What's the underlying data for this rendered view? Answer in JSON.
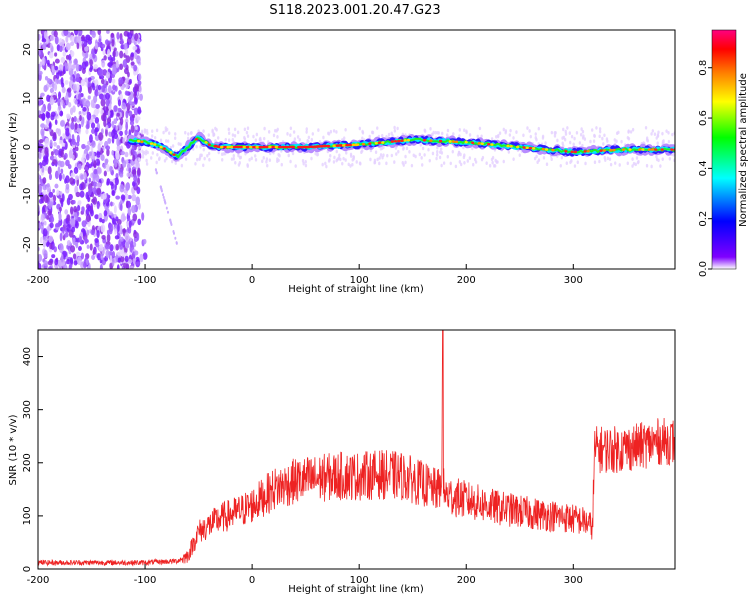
{
  "title": "S118.2023.001.20.47.G23",
  "chart_data": [
    {
      "type": "heatmap",
      "xlabel": "Height of straight line (km)",
      "ylabel": "Frequency (Hz)",
      "xlim": [
        -200,
        395
      ],
      "ylim": [
        -25,
        24
      ],
      "x_ticks": [
        -200,
        -100,
        0,
        100,
        200,
        300
      ],
      "y_ticks": [
        -20,
        -10,
        0,
        10,
        20
      ],
      "colorbar": {
        "label": "Normalized spectral amplitude",
        "range": [
          0,
          0.95
        ],
        "ticks": [
          0.0,
          0.2,
          0.4,
          0.6,
          0.8
        ],
        "colors": [
          "#ffffff",
          "#7f00ff",
          "#0000ff",
          "#00ffff",
          "#00ff00",
          "#ffff00",
          "#ff7f00",
          "#ff0000",
          "#ff0080"
        ]
      },
      "peak_frequency_track": {
        "x": [
          -115,
          -100,
          -90,
          -80,
          -70,
          -60,
          -50,
          -40,
          -30,
          0,
          50,
          100,
          150,
          200,
          250,
          300,
          350,
          395
        ],
        "y": [
          1.5,
          1,
          0.5,
          -0.5,
          -2,
          0,
          2,
          0.5,
          0,
          0,
          0,
          0.5,
          1.5,
          1,
          0,
          -1,
          -0.5,
          -0.5
        ]
      }
    },
    {
      "type": "line",
      "xlabel": "Height of straight line (km)",
      "ylabel": "SNR (10 * v/v)",
      "xlim": [
        -200,
        395
      ],
      "ylim": [
        0,
        450
      ],
      "x_ticks": [
        -200,
        -100,
        0,
        100,
        200,
        300
      ],
      "y_ticks": [
        0,
        100,
        200,
        300,
        400
      ],
      "color": "#ee2222",
      "x": [
        -200,
        -150,
        -100,
        -70,
        -60,
        -50,
        -30,
        -10,
        0,
        20,
        40,
        60,
        80,
        100,
        120,
        140,
        160,
        170,
        177,
        178,
        180,
        190,
        200,
        230,
        260,
        290,
        310,
        318,
        320,
        340,
        360,
        380,
        395
      ],
      "y": [
        12,
        12,
        12,
        15,
        25,
        70,
        95,
        110,
        120,
        150,
        165,
        170,
        175,
        175,
        178,
        175,
        160,
        150,
        150,
        440,
        140,
        135,
        130,
        115,
        105,
        98,
        90,
        80,
        225,
        225,
        230,
        240,
        240
      ]
    }
  ]
}
